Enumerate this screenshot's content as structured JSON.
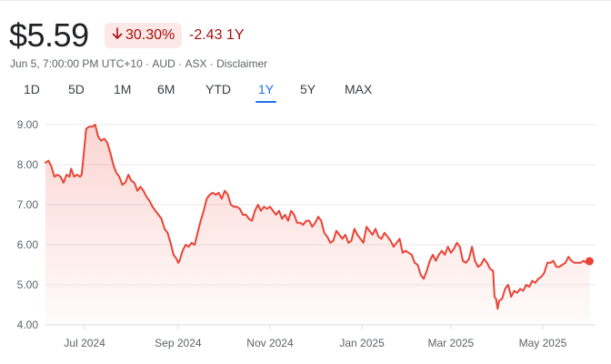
{
  "header": {
    "price": "$5.59",
    "change_percent": "30.30%",
    "change_percent_icon": "arrow-down-icon",
    "change_abs": "-2.43 1Y",
    "negative_color": "#a50e0e",
    "badge_bg": "#fce8e6"
  },
  "meta": {
    "timestamp": "Jun 5, 7:00:00 PM UTC+10",
    "currency": "AUD",
    "exchange": "ASX",
    "disclaimer": "Disclaimer"
  },
  "tabs": [
    {
      "label": "1D",
      "active": false
    },
    {
      "label": "5D",
      "active": false
    },
    {
      "label": "1M",
      "active": false
    },
    {
      "label": "6M",
      "active": false
    },
    {
      "label": "YTD",
      "active": false
    },
    {
      "label": "1Y",
      "active": true
    },
    {
      "label": "5Y",
      "active": false
    },
    {
      "label": "MAX",
      "active": false
    }
  ],
  "chart_data": {
    "type": "area",
    "title": "",
    "xlabel": "",
    "ylabel": "",
    "ylim": [
      4.0,
      9.0
    ],
    "yticks": [
      "9.00",
      "8.00",
      "7.00",
      "6.00",
      "5.00",
      "4.00"
    ],
    "xlim_days": [
      0,
      365
    ],
    "xticks": [
      {
        "label": "Jul 2024",
        "day": 26
      },
      {
        "label": "Sep 2024",
        "day": 88
      },
      {
        "label": "Nov 2024",
        "day": 149
      },
      {
        "label": "Jan 2025",
        "day": 210
      },
      {
        "label": "Mar 2025",
        "day": 269
      },
      {
        "label": "May 2025",
        "day": 330
      }
    ],
    "grid": true,
    "line_color": "#ea4335",
    "fill_color": "#ea4335",
    "series": [
      {
        "points": [
          [
            0,
            8.05
          ],
          [
            2,
            8.1
          ],
          [
            4,
            7.95
          ],
          [
            6,
            7.7
          ],
          [
            8,
            7.75
          ],
          [
            10,
            7.7
          ],
          [
            12,
            7.55
          ],
          [
            14,
            7.75
          ],
          [
            16,
            7.7
          ],
          [
            17,
            7.9
          ],
          [
            19,
            7.7
          ],
          [
            21,
            7.75
          ],
          [
            23,
            7.7
          ],
          [
            24,
            7.75
          ],
          [
            25,
            8.1
          ],
          [
            27,
            8.9
          ],
          [
            29,
            8.95
          ],
          [
            31,
            8.95
          ],
          [
            33,
            9.0
          ],
          [
            35,
            8.7
          ],
          [
            37,
            8.6
          ],
          [
            39,
            8.65
          ],
          [
            41,
            8.55
          ],
          [
            43,
            8.3
          ],
          [
            45,
            8.0
          ],
          [
            47,
            7.8
          ],
          [
            49,
            7.7
          ],
          [
            51,
            7.5
          ],
          [
            53,
            7.55
          ],
          [
            55,
            7.75
          ],
          [
            57,
            7.6
          ],
          [
            59,
            7.55
          ],
          [
            61,
            7.35
          ],
          [
            63,
            7.45
          ],
          [
            65,
            7.35
          ],
          [
            67,
            7.2
          ],
          [
            69,
            7.1
          ],
          [
            71,
            6.95
          ],
          [
            73,
            6.85
          ],
          [
            75,
            6.75
          ],
          [
            77,
            6.65
          ],
          [
            79,
            6.4
          ],
          [
            81,
            6.3
          ],
          [
            83,
            6.05
          ],
          [
            85,
            5.75
          ],
          [
            86,
            5.7
          ],
          [
            87,
            5.65
          ],
          [
            88,
            5.55
          ],
          [
            89,
            5.6
          ],
          [
            91,
            5.85
          ],
          [
            93,
            6.0
          ],
          [
            95,
            5.95
          ],
          [
            97,
            6.05
          ],
          [
            99,
            6.0
          ],
          [
            101,
            6.3
          ],
          [
            103,
            6.6
          ],
          [
            105,
            6.85
          ],
          [
            107,
            7.15
          ],
          [
            109,
            7.25
          ],
          [
            111,
            7.3
          ],
          [
            113,
            7.25
          ],
          [
            115,
            7.3
          ],
          [
            117,
            7.15
          ],
          [
            119,
            7.35
          ],
          [
            121,
            7.25
          ],
          [
            123,
            7.0
          ],
          [
            125,
            6.95
          ],
          [
            127,
            6.95
          ],
          [
            129,
            6.9
          ],
          [
            131,
            6.75
          ],
          [
            133,
            6.75
          ],
          [
            135,
            6.65
          ],
          [
            137,
            6.6
          ],
          [
            139,
            6.85
          ],
          [
            141,
            7.0
          ],
          [
            143,
            6.85
          ],
          [
            145,
            6.95
          ],
          [
            147,
            6.9
          ],
          [
            149,
            6.95
          ],
          [
            151,
            6.85
          ],
          [
            153,
            6.75
          ],
          [
            155,
            6.85
          ],
          [
            157,
            6.65
          ],
          [
            159,
            6.75
          ],
          [
            161,
            6.6
          ],
          [
            163,
            6.85
          ],
          [
            165,
            6.75
          ],
          [
            167,
            6.55
          ],
          [
            169,
            6.55
          ],
          [
            171,
            6.5
          ],
          [
            173,
            6.6
          ],
          [
            175,
            6.6
          ],
          [
            177,
            6.45
          ],
          [
            179,
            6.55
          ],
          [
            181,
            6.7
          ],
          [
            183,
            6.6
          ],
          [
            185,
            6.3
          ],
          [
            187,
            6.2
          ],
          [
            189,
            6.05
          ],
          [
            191,
            6.1
          ],
          [
            193,
            6.35
          ],
          [
            195,
            6.25
          ],
          [
            197,
            6.15
          ],
          [
            199,
            6.25
          ],
          [
            201,
            6.05
          ],
          [
            203,
            6.1
          ],
          [
            205,
            6.4
          ],
          [
            207,
            6.25
          ],
          [
            209,
            6.15
          ],
          [
            211,
            6.05
          ],
          [
            213,
            6.45
          ],
          [
            215,
            6.35
          ],
          [
            217,
            6.25
          ],
          [
            219,
            6.4
          ],
          [
            221,
            6.2
          ],
          [
            223,
            6.15
          ],
          [
            225,
            6.3
          ],
          [
            227,
            6.2
          ],
          [
            229,
            6.1
          ],
          [
            231,
            5.95
          ],
          [
            233,
            6.05
          ],
          [
            235,
            6.15
          ],
          [
            237,
            5.8
          ],
          [
            239,
            5.85
          ],
          [
            241,
            5.8
          ],
          [
            243,
            5.75
          ],
          [
            245,
            5.55
          ],
          [
            247,
            5.5
          ],
          [
            249,
            5.25
          ],
          [
            251,
            5.15
          ],
          [
            253,
            5.35
          ],
          [
            255,
            5.6
          ],
          [
            257,
            5.75
          ],
          [
            259,
            5.6
          ],
          [
            261,
            5.75
          ],
          [
            263,
            5.85
          ],
          [
            265,
            5.75
          ],
          [
            267,
            5.95
          ],
          [
            269,
            5.8
          ],
          [
            271,
            5.9
          ],
          [
            273,
            6.05
          ],
          [
            275,
            5.95
          ],
          [
            277,
            5.6
          ],
          [
            279,
            5.55
          ],
          [
            281,
            5.65
          ],
          [
            283,
            5.95
          ],
          [
            285,
            5.6
          ],
          [
            287,
            5.45
          ],
          [
            289,
            5.5
          ],
          [
            291,
            5.65
          ],
          [
            293,
            5.55
          ],
          [
            295,
            5.4
          ],
          [
            297,
            5.35
          ],
          [
            298,
            4.7
          ],
          [
            299,
            4.65
          ],
          [
            300,
            4.4
          ],
          [
            301,
            4.6
          ],
          [
            303,
            4.65
          ],
          [
            305,
            4.9
          ],
          [
            307,
            5.0
          ],
          [
            309,
            4.7
          ],
          [
            311,
            4.85
          ],
          [
            313,
            4.8
          ],
          [
            315,
            4.9
          ],
          [
            317,
            4.85
          ],
          [
            319,
            5.0
          ],
          [
            321,
            4.95
          ],
          [
            323,
            5.1
          ],
          [
            325,
            5.05
          ],
          [
            327,
            5.15
          ],
          [
            329,
            5.2
          ],
          [
            331,
            5.3
          ],
          [
            333,
            5.55
          ],
          [
            335,
            5.55
          ],
          [
            337,
            5.6
          ],
          [
            339,
            5.45
          ],
          [
            341,
            5.45
          ],
          [
            343,
            5.5
          ],
          [
            345,
            5.55
          ],
          [
            347,
            5.7
          ],
          [
            349,
            5.6
          ],
          [
            351,
            5.55
          ],
          [
            353,
            5.55
          ],
          [
            355,
            5.55
          ],
          [
            357,
            5.6
          ],
          [
            359,
            5.55
          ],
          [
            361,
            5.59
          ]
        ]
      }
    ],
    "last_value": 5.59
  }
}
